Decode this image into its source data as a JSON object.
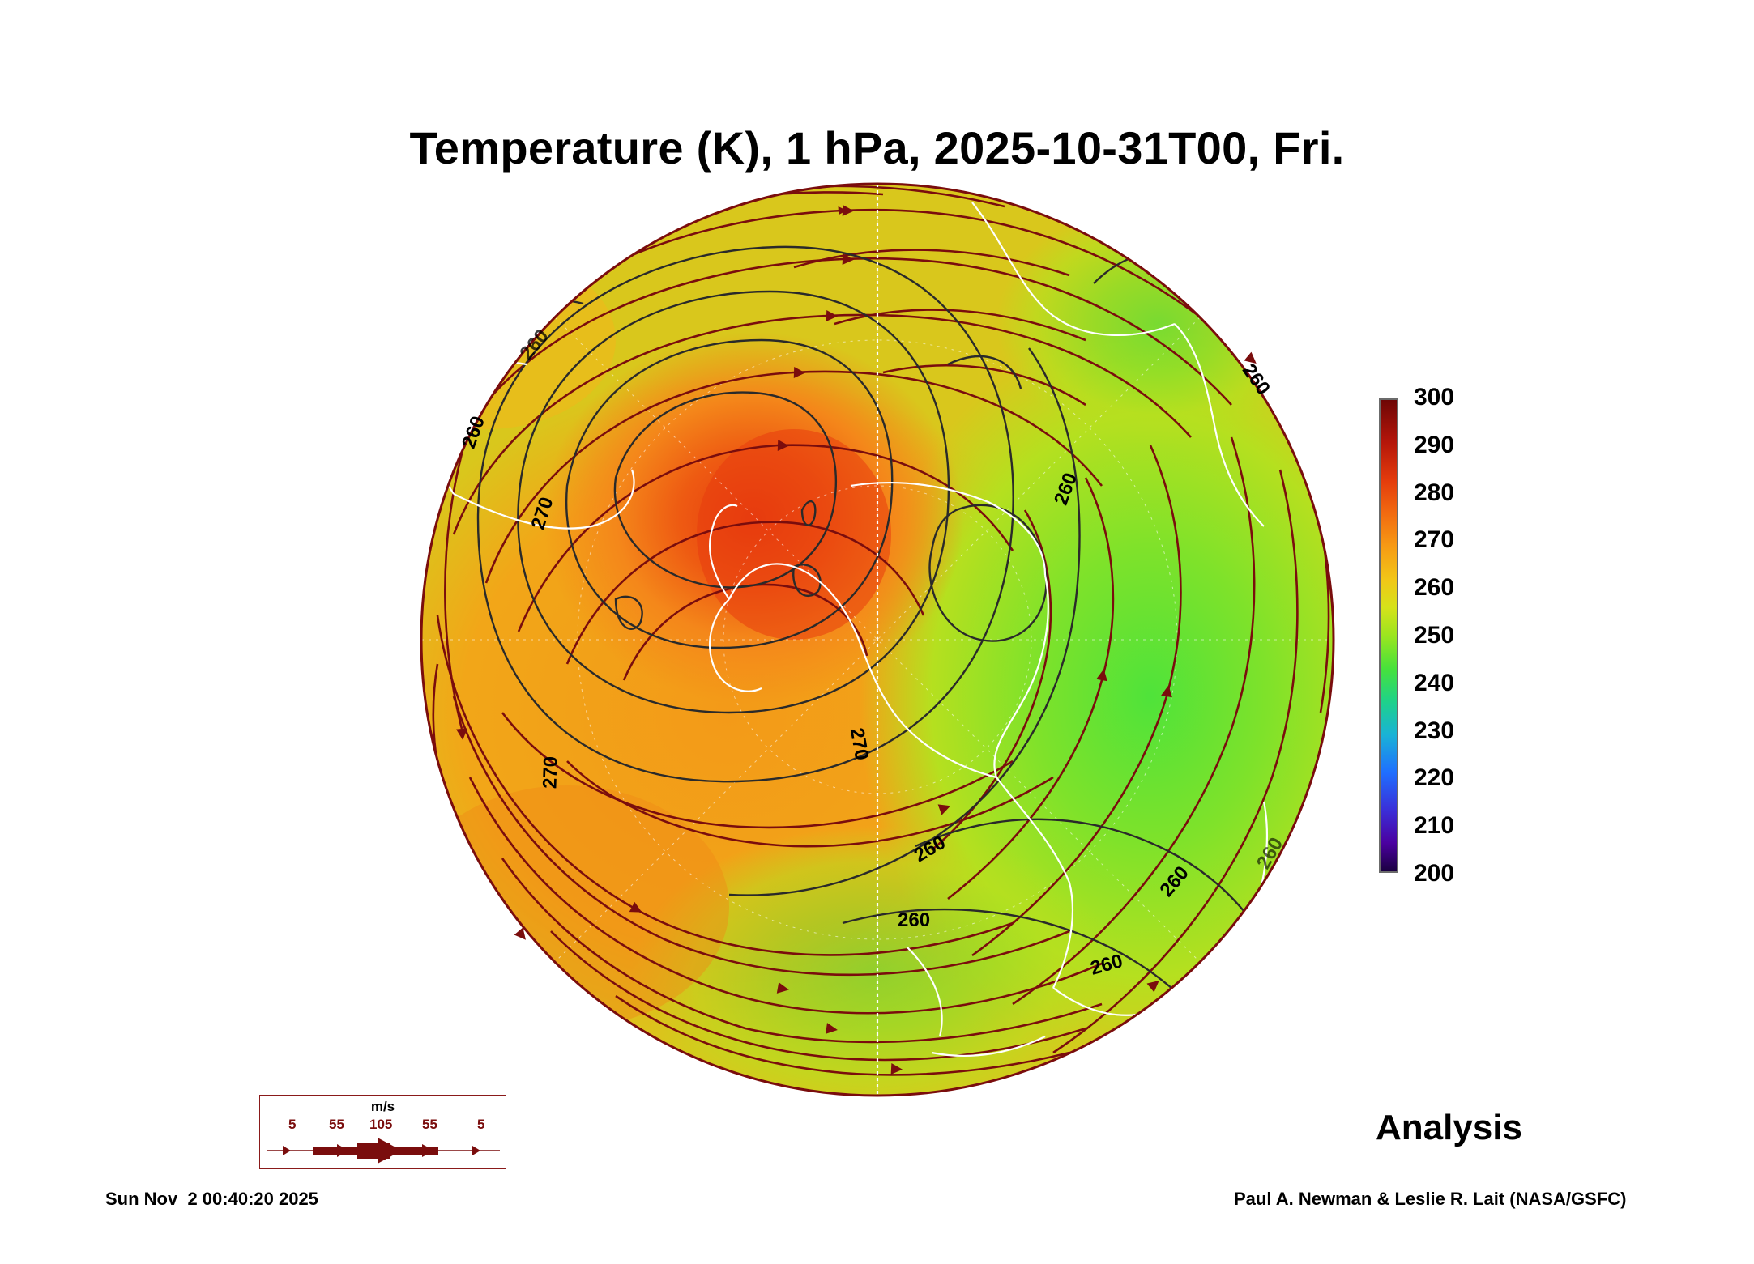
{
  "title": "Temperature (K), 1 hPa, 2025-10-31T00, Fri.",
  "colorbar": {
    "labels": [
      "300",
      "290",
      "280",
      "270",
      "260",
      "250",
      "240",
      "230",
      "220",
      "210",
      "200"
    ],
    "min": 200,
    "max": 300
  },
  "contour_labels": [
    "260",
    "260",
    "260",
    "270",
    "270",
    "270",
    "260",
    "260",
    "260",
    "260",
    "260",
    "260"
  ],
  "wind_legend": {
    "unit": "m/s",
    "speeds": [
      "5",
      "55",
      "105",
      "55",
      "5"
    ]
  },
  "analysis_label": "Analysis",
  "datestamp": "Sun Nov  2 00:40:20 2025",
  "credit": "Paul A. Newman & Leslie R. Lait (NASA/GSFC)",
  "colors": {
    "streamline": "#7a0d0d",
    "contour": "#2a2a2a",
    "coastline": "#ffffff",
    "warm_core": "#e84a10",
    "mid": "#f2a417",
    "cool": "#7fe23a"
  }
}
